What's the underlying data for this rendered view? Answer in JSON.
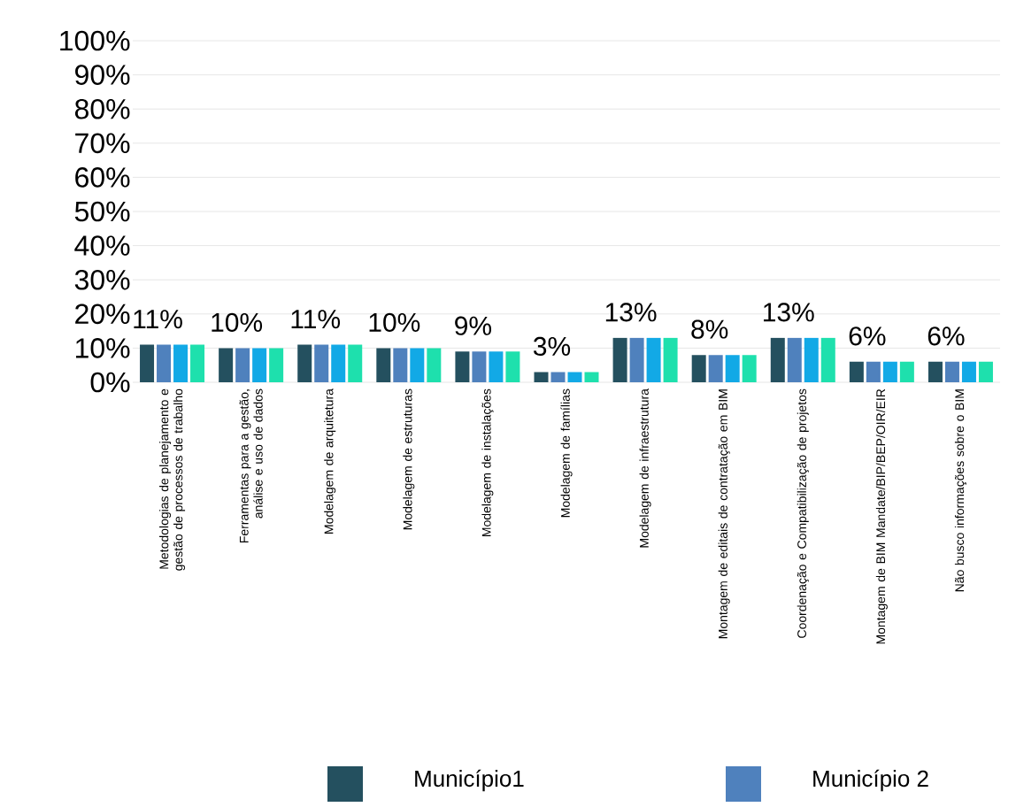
{
  "chart_data": {
    "type": "bar",
    "categories": [
      "Metodologias de planejamento e gestão de processos de trabalho",
      "Ferramentas para a gestão, análise e uso de dados",
      "Modelagem de arquitetura",
      "Modelagem de estruturas",
      "Modelagem de instalações",
      "Modelagem de famílias",
      "Modelagem de infraestrutura",
      "Montagem de editais de contratação em BIM",
      "Coordenação e Compatibilização de projetos",
      "Montagem de BIM Mandate/BIP/BEP/OIR/EIR",
      "Não busco informações sobre o BIM"
    ],
    "series": [
      {
        "name": "Município1",
        "color": "#24505f",
        "values": [
          11,
          10,
          11,
          10,
          9,
          3,
          13,
          8,
          13,
          6,
          6
        ],
        "value_labels": [
          "11%",
          "10%",
          "11%",
          "10%",
          "9%",
          "3%",
          "13%",
          "8%",
          "13%",
          "6%",
          "6%"
        ]
      },
      {
        "name": "Município 2",
        "color": "#4f81bd",
        "values": [
          11,
          10,
          11,
          10,
          9,
          3,
          13,
          8,
          13,
          6,
          6
        ]
      },
      {
        "color": "#12a9e6",
        "values": [
          11,
          10,
          11,
          10,
          9,
          3,
          13,
          8,
          13,
          6,
          6
        ]
      },
      {
        "color": "#1ee0ad",
        "values": [
          11,
          10,
          11,
          10,
          9,
          3,
          13,
          8,
          13,
          6,
          6
        ]
      }
    ],
    "ylim": [
      0,
      100
    ],
    "yticks": [
      {
        "value": 0,
        "label": "0%"
      },
      {
        "value": 10,
        "label": "10%"
      },
      {
        "value": 20,
        "label": "20%"
      },
      {
        "value": 30,
        "label": "30%"
      },
      {
        "value": 40,
        "label": "40%"
      },
      {
        "value": 50,
        "label": "50%"
      },
      {
        "value": 60,
        "label": "60%"
      },
      {
        "value": 70,
        "label": "70%"
      },
      {
        "value": 80,
        "label": "80%"
      },
      {
        "value": 90,
        "label": "90%"
      },
      {
        "value": 100,
        "label": "100%"
      }
    ],
    "grid": "y",
    "legend": "bottom"
  }
}
